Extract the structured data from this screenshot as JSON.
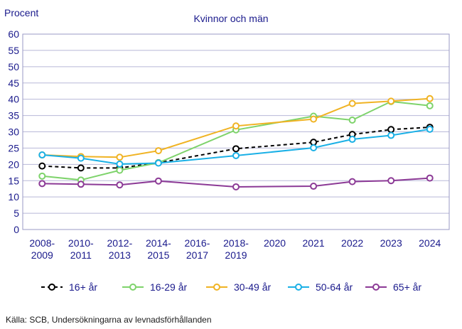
{
  "chart_data": {
    "type": "line",
    "title": "Kvinnor och män",
    "ylabel": "Procent",
    "xlabel": "",
    "source": "Källa: SCB, Undersökningarna  av levnadsförhållanden",
    "ylim": [
      0,
      60
    ],
    "yticks": [
      0,
      5,
      10,
      15,
      20,
      25,
      30,
      35,
      40,
      45,
      50,
      55,
      60
    ],
    "grid": true,
    "legend": "bottom",
    "categories": [
      [
        "2008-",
        "2009"
      ],
      [
        "2010-",
        "2011"
      ],
      [
        "2012-",
        "2013"
      ],
      [
        "2014-",
        "2015"
      ],
      [
        "2016-",
        "2017"
      ],
      [
        "2018-",
        "2019"
      ],
      [
        "2020"
      ],
      [
        "2021"
      ],
      [
        "2022"
      ],
      [
        "2023"
      ],
      [
        "2024"
      ]
    ],
    "series": [
      {
        "name": "16+ år",
        "color": "#000000",
        "dashed": true,
        "values": [
          19.5,
          18.9,
          18.9,
          20.5,
          null,
          24.8,
          null,
          26.8,
          29.2,
          30.7,
          31.4
        ]
      },
      {
        "name": "16-29 år",
        "color": "#7ed36b",
        "dashed": false,
        "values": [
          16.4,
          15.2,
          18.2,
          20.5,
          null,
          30.6,
          null,
          34.8,
          33.6,
          39.3,
          38.0
        ]
      },
      {
        "name": "30-49 år",
        "color": "#f0b323",
        "dashed": false,
        "values": [
          22.9,
          22.4,
          22.2,
          24.2,
          null,
          31.8,
          null,
          33.9,
          38.7,
          39.4,
          40.2
        ]
      },
      {
        "name": "50-64 år",
        "color": "#1ab0e6",
        "dashed": false,
        "values": [
          22.9,
          21.9,
          20.1,
          20.4,
          null,
          22.7,
          null,
          25.1,
          27.7,
          28.9,
          30.8
        ]
      },
      {
        "name": "65+ år",
        "color": "#8c3a96",
        "dashed": false,
        "values": [
          14.1,
          13.9,
          13.7,
          14.9,
          null,
          13.1,
          null,
          13.3,
          14.7,
          15.0,
          15.8
        ]
      }
    ]
  }
}
